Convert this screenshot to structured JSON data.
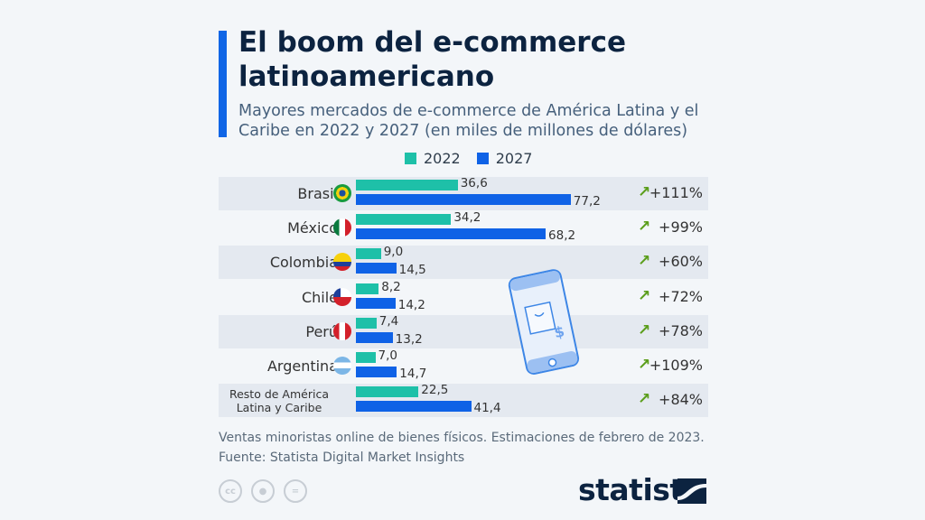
{
  "title": "El boom del e-commerce latinoamericano",
  "subtitle": "Mayores mercados de e-commerce de América Latina y el Caribe en 2022 y 2027 (en miles de millones de dólares)",
  "colors": {
    "accent": "#1066e6",
    "series_2022": "#1ec0a8",
    "series_2027": "#0f62e6",
    "arrow": "#5b9e1b"
  },
  "chart_data": {
    "type": "bar",
    "orientation": "horizontal",
    "categories": [
      "Brasil",
      "México",
      "Colombia",
      "Chile",
      "Perú",
      "Argentina",
      "Resto de América Latina y Caribe"
    ],
    "series": [
      {
        "name": "2022",
        "values": [
          36.6,
          34.2,
          9.0,
          8.2,
          7.4,
          7.0,
          22.5
        ],
        "labels": [
          "36,6",
          "34,2",
          "9,0",
          "8,2",
          "7,4",
          "7,0",
          "22,5"
        ]
      },
      {
        "name": "2027",
        "values": [
          77.2,
          68.2,
          14.5,
          14.2,
          13.2,
          14.7,
          41.4
        ],
        "labels": [
          "77,2",
          "68,2",
          "14,5",
          "14,2",
          "13,2",
          "14,7",
          "41,4"
        ]
      }
    ],
    "growth": [
      "+111%",
      "+99%",
      "+60%",
      "+72%",
      "+78%",
      "+109%",
      "+84%"
    ],
    "flags": [
      "brazil-flag",
      "mexico-flag",
      "colombia-flag",
      "chile-flag",
      "peru-flag",
      "argentina-flag",
      null
    ],
    "legend_position": "top",
    "xlim": [
      0,
      80
    ],
    "grid": false
  },
  "footer": {
    "note": "Ventas minoristas online de bienes físicos. Estimaciones de febrero de 2023.",
    "source": "Fuente: Statista Digital Market Insights"
  },
  "license_icons": {
    "cc": "cc"
  },
  "logo": "statista"
}
